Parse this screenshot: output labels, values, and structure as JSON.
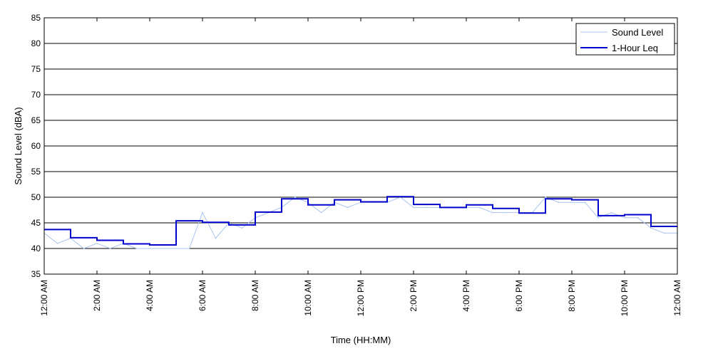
{
  "chart_data": {
    "type": "line",
    "title": "",
    "xlabel": "Time (HH:MM)",
    "ylabel": "Sound Level (dBA)",
    "xlim": [
      0,
      24
    ],
    "ylim": [
      35,
      85
    ],
    "yticks": [
      35,
      40,
      45,
      50,
      55,
      60,
      65,
      70,
      75,
      80,
      85
    ],
    "xticks": [
      {
        "x": 0,
        "label": "12:00 AM"
      },
      {
        "x": 2,
        "label": "2:00 AM"
      },
      {
        "x": 4,
        "label": "4:00 AM"
      },
      {
        "x": 6,
        "label": "6:00 AM"
      },
      {
        "x": 8,
        "label": "8:00 AM"
      },
      {
        "x": 10,
        "label": "10:00 AM"
      },
      {
        "x": 12,
        "label": "12:00 PM"
      },
      {
        "x": 14,
        "label": "2:00 PM"
      },
      {
        "x": 16,
        "label": "4:00 PM"
      },
      {
        "x": 18,
        "label": "6:00 PM"
      },
      {
        "x": 20,
        "label": "8:00 PM"
      },
      {
        "x": 22,
        "label": "10:00 PM"
      },
      {
        "x": 24,
        "label": "12:00 AM"
      }
    ],
    "grid": "horizontal",
    "legend_position": "top-right",
    "series": [
      {
        "name": "Sound Level",
        "color": "#a9c3ee",
        "style": "thin-line",
        "x": [
          0,
          0.5,
          1,
          1.5,
          2,
          2.5,
          3,
          3.5,
          4,
          4.5,
          5,
          5.5,
          6,
          6.5,
          7,
          7.5,
          8,
          8.5,
          9,
          9.5,
          10,
          10.5,
          11,
          11.5,
          12,
          12.5,
          13,
          13.5,
          14,
          14.5,
          15,
          15.5,
          16,
          16.5,
          17,
          17.5,
          18,
          18.5,
          19,
          19.5,
          20,
          20.5,
          21,
          21.5,
          22,
          22.5,
          23,
          23.5,
          24
        ],
        "values": [
          43,
          41,
          42,
          40,
          41,
          40,
          41,
          40,
          40,
          40,
          40,
          40,
          47,
          42,
          45,
          44,
          46,
          47,
          48,
          50,
          49,
          47,
          49,
          48,
          49,
          49,
          49,
          50,
          48,
          48,
          48,
          48,
          48,
          48,
          47,
          47,
          47,
          47,
          50,
          49,
          49,
          49,
          46,
          47,
          46,
          46,
          44,
          43,
          43
        ]
      },
      {
        "name": "1-Hour Leq",
        "color": "#0000cc",
        "style": "step",
        "values": [
          43.7,
          42.1,
          41.6,
          40.9,
          40.7,
          45.4,
          45.1,
          44.6,
          47.1,
          49.7,
          48.5,
          49.5,
          49.1,
          50.1,
          48.6,
          48.0,
          48.5,
          47.8,
          46.9,
          49.7,
          49.5,
          46.4,
          46.6,
          44.3
        ]
      }
    ]
  }
}
